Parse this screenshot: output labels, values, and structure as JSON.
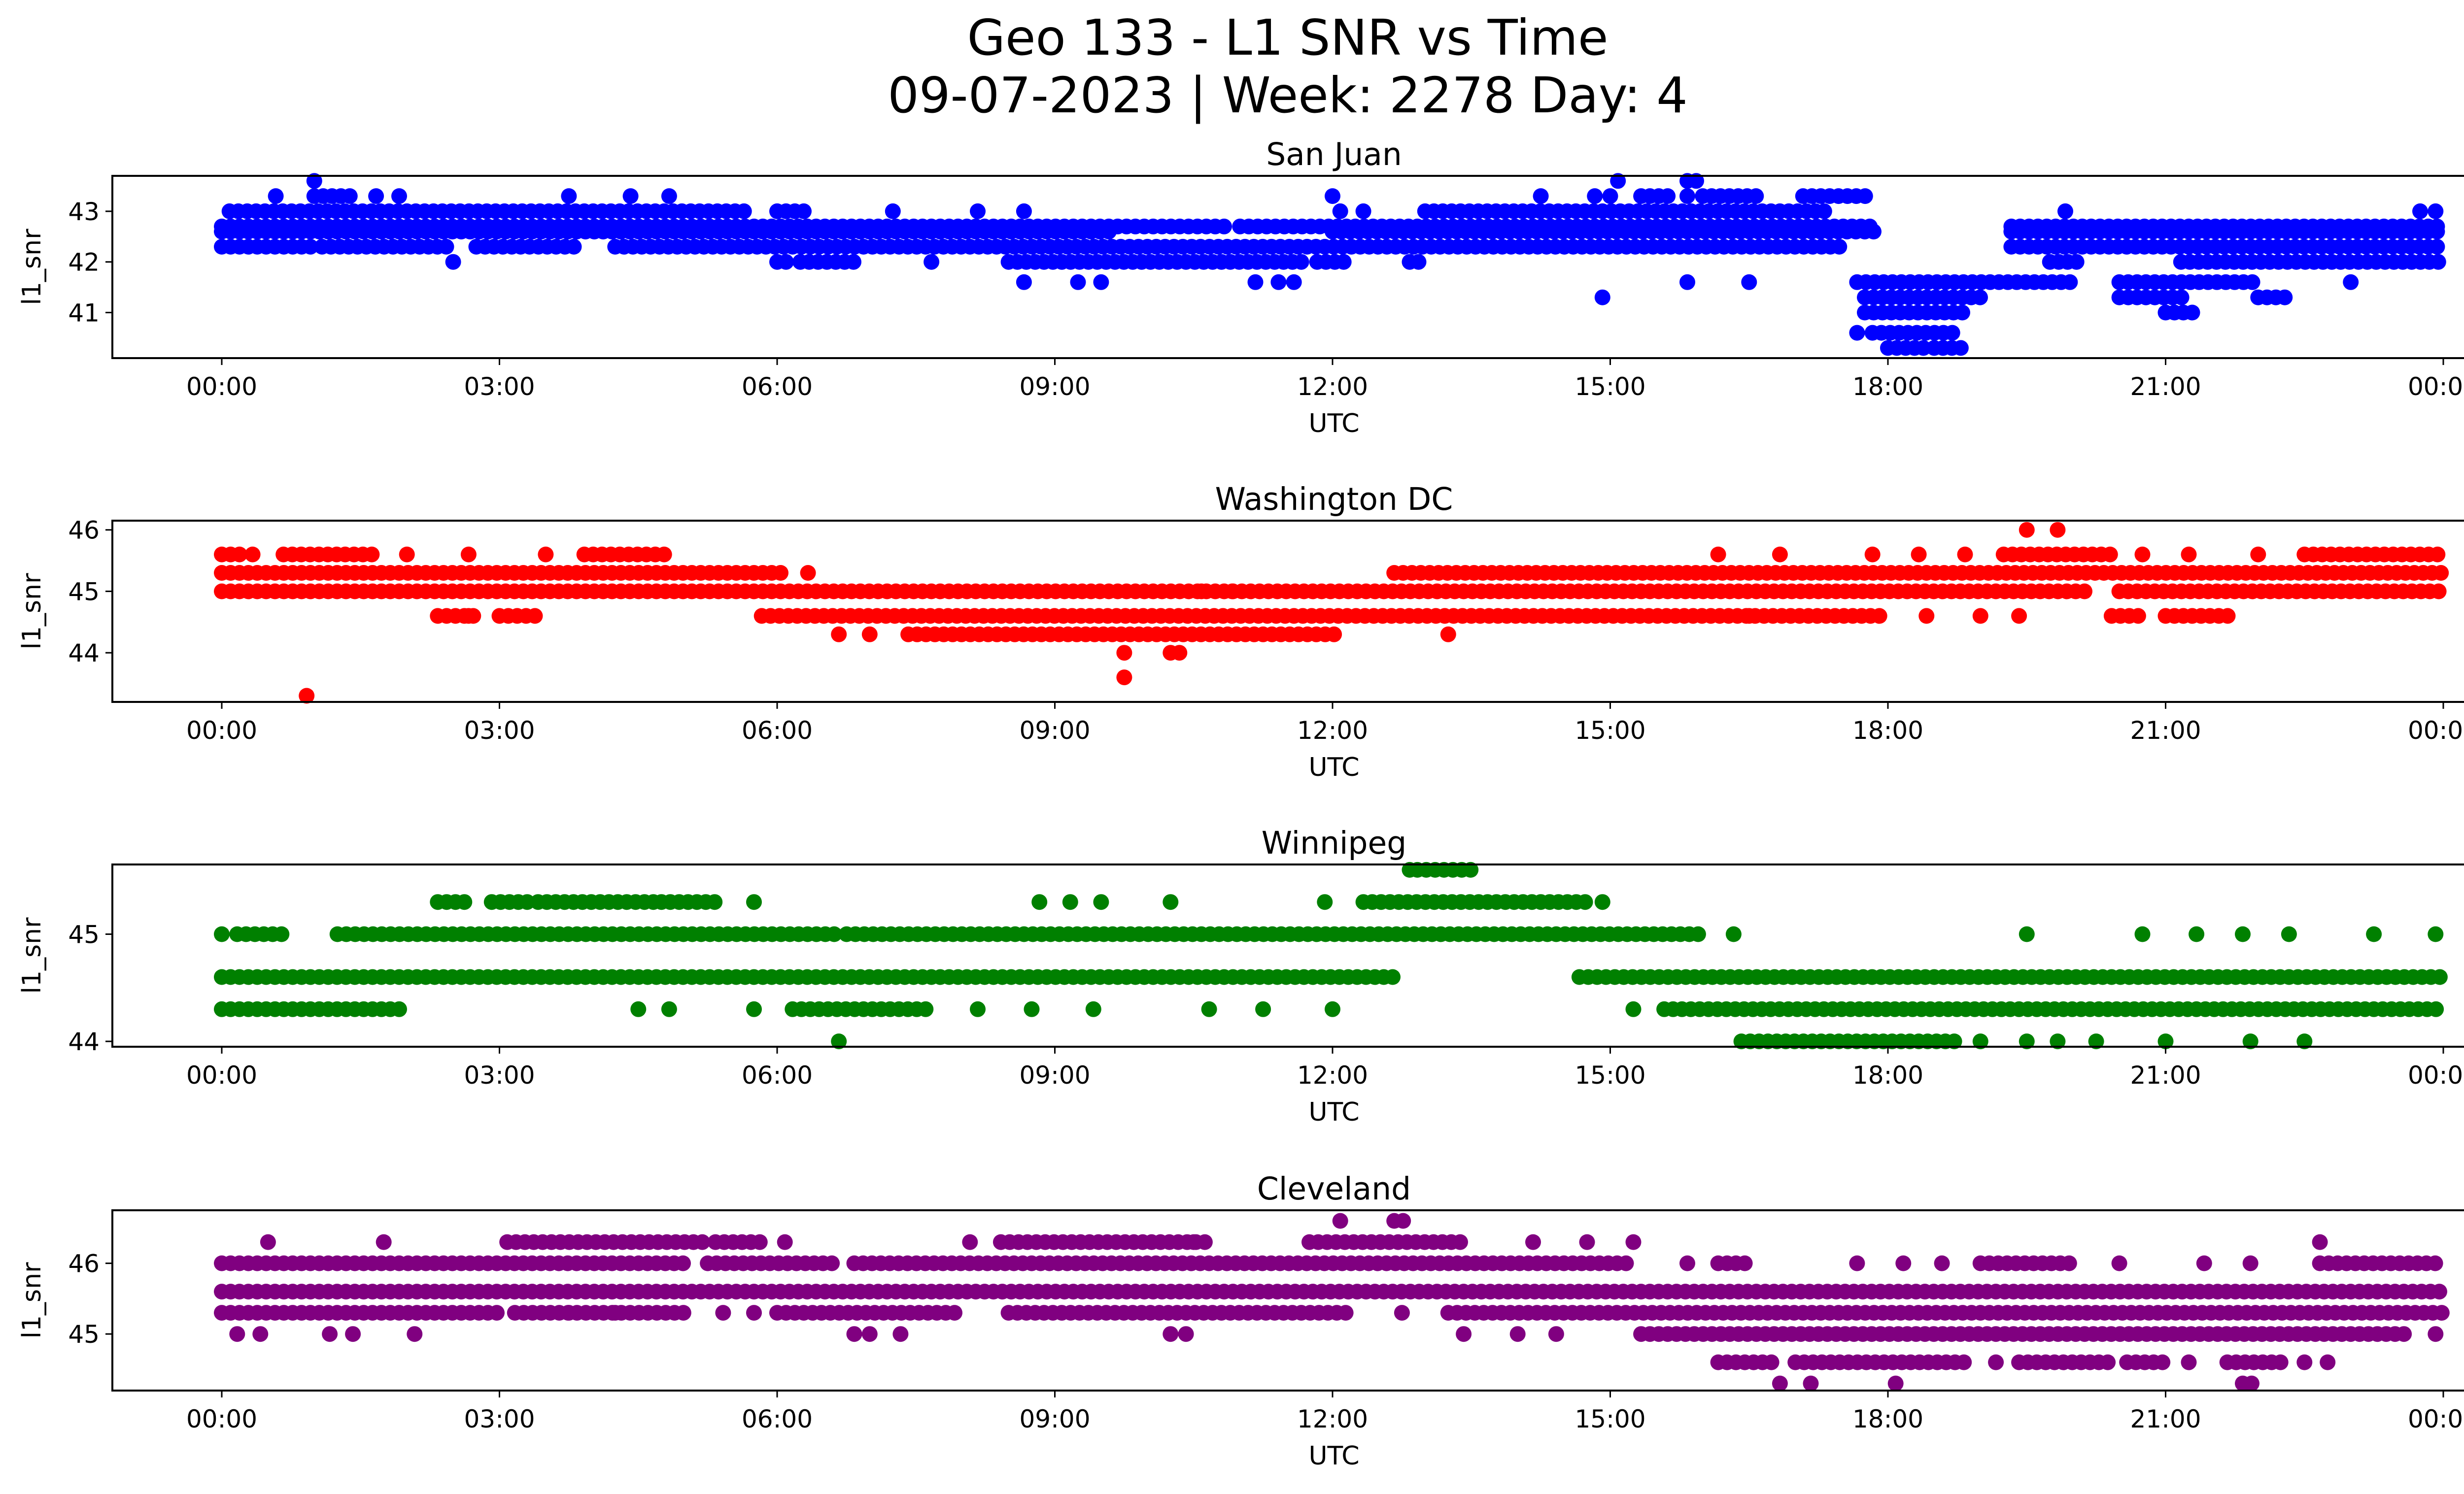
{
  "title_line1": "Geo 133 - L1 SNR vs Time",
  "title_line2": "09-07-2023 | Week: 2278 Day: 4",
  "chart_data": [
    {
      "type": "scatter",
      "title": "San Juan",
      "xlabel": "UTC",
      "ylabel": "l1_snr",
      "color": "#0000ff",
      "xlim": [
        "2023-09-07T00:00Z",
        "2023-09-08T00:00Z"
      ],
      "ylim": [
        40.1,
        43.7
      ],
      "xticks": [
        "00:00",
        "03:00",
        "06:00",
        "09:00",
        "12:00",
        "15:00",
        "18:00",
        "21:00",
        "00:00"
      ],
      "yticks": [
        41,
        42,
        43
      ],
      "grid": false,
      "levels": [
        {
          "y": 43.0,
          "segments": [
            [
              "00:05",
              "05:40"
            ],
            [
              "06:00",
              "06:20"
            ],
            [
              "13:00",
              "17:20"
            ]
          ],
          "points": [
            "07:15",
            "08:10",
            "08:40",
            "12:05",
            "12:20",
            "19:55",
            "23:45",
            "23:55"
          ]
        },
        {
          "y": 42.7,
          "segments": [
            [
              "00:00",
              "10:50"
            ],
            [
              "11:00",
              "17:50"
            ],
            [
              "19:20",
              "23:59"
            ]
          ],
          "points": []
        },
        {
          "y": 42.6,
          "segments": [
            [
              "00:00",
              "09:40"
            ],
            [
              "12:00",
              "17:55"
            ],
            [
              "19:20",
              "23:59"
            ]
          ],
          "points": []
        },
        {
          "y": 42.3,
          "segments": [
            [
              "00:00",
              "01:00"
            ],
            [
              "01:05",
              "02:30"
            ],
            [
              "02:45",
              "03:50"
            ],
            [
              "04:15",
              "17:30"
            ],
            [
              "19:20",
              "23:59"
            ]
          ],
          "points": []
        },
        {
          "y": 42.0,
          "segments": [
            [
              "06:00",
              "06:10"
            ],
            [
              "06:15",
              "06:50"
            ],
            [
              "08:30",
              "11:40"
            ],
            [
              "11:50",
              "12:10"
            ],
            [
              "12:50",
              "13:00"
            ],
            [
              "19:45",
              "20:05"
            ],
            [
              "21:10",
              "23:59"
            ]
          ],
          "points": [
            "02:30",
            "07:40"
          ]
        },
        {
          "y": 41.6,
          "segments": [
            [
              "17:40",
              "20:00"
            ],
            [
              "20:30",
              "22:00"
            ]
          ],
          "points": [
            "08:40",
            "09:15",
            "09:30",
            "11:10",
            "11:25",
            "11:35",
            "15:50",
            "16:30",
            "23:00"
          ]
        },
        {
          "y": 41.3,
          "segments": [
            [
              "17:45",
              "19:00"
            ],
            [
              "20:30",
              "21:15"
            ],
            [
              "22:00",
              "22:20"
            ]
          ],
          "points": [
            "14:55"
          ]
        },
        {
          "y": 41.0,
          "segments": [
            [
              "17:45",
              "18:50"
            ],
            [
              "21:00",
              "21:20"
            ]
          ],
          "points": []
        },
        {
          "y": 40.6,
          "segments": [
            [
              "17:50",
              "18:45"
            ]
          ],
          "points": [
            "17:40"
          ]
        },
        {
          "y": 40.3,
          "segments": [
            [
              "18:00",
              "18:25"
            ],
            [
              "18:30",
              "18:50"
            ]
          ],
          "points": []
        },
        {
          "y": 43.3,
          "segments": [
            [
              "01:00",
              "01:25"
            ],
            [
              "15:20",
              "15:40"
            ],
            [
              "16:00",
              "16:40"
            ],
            [
              "17:05",
              "17:50"
            ]
          ],
          "points": [
            "00:35",
            "01:40",
            "01:55",
            "03:45",
            "04:25",
            "04:50",
            "12:00",
            "14:15",
            "14:50",
            "15:00",
            "15:50"
          ]
        },
        {
          "y": 43.6,
          "segments": [
            [
              "15:50",
              "16:00"
            ]
          ],
          "points": [
            "01:00",
            "15:05"
          ]
        }
      ]
    },
    {
      "type": "scatter",
      "title": "Washington DC",
      "xlabel": "UTC",
      "ylabel": "l1_snr",
      "color": "#ff0000",
      "xlim": [
        "2023-09-07T00:00Z",
        "2023-09-08T00:00Z"
      ],
      "ylim": [
        43.2,
        46.15
      ],
      "xticks": [
        "00:00",
        "03:00",
        "06:00",
        "09:00",
        "12:00",
        "15:00",
        "18:00",
        "21:00",
        "00:00"
      ],
      "yticks": [
        44,
        45,
        46
      ],
      "grid": false,
      "levels": [
        {
          "y": 46.0,
          "segments": [],
          "points": [
            "19:30",
            "19:50"
          ]
        },
        {
          "y": 45.6,
          "segments": [
            [
              "00:00",
              "00:15"
            ],
            [
              "00:40",
              "01:15"
            ],
            [
              "01:20",
              "01:40"
            ],
            [
              "03:55",
              "04:50"
            ],
            [
              "19:15",
              "20:25"
            ],
            [
              "22:30",
              "23:59"
            ]
          ],
          "points": [
            "00:20",
            "02:00",
            "02:40",
            "03:30",
            "16:10",
            "16:50",
            "17:50",
            "18:20",
            "18:50",
            "20:45",
            "21:15",
            "22:00"
          ]
        },
        {
          "y": 45.3,
          "segments": [
            [
              "00:00",
              "06:05"
            ],
            [
              "12:40",
              "23:59"
            ]
          ],
          "points": [
            "06:20"
          ]
        },
        {
          "y": 45.0,
          "segments": [
            [
              "00:00",
              "20:10"
            ],
            [
              "20:30",
              "23:59"
            ]
          ],
          "points": [
            "10:35",
            "10:55"
          ]
        },
        {
          "y": 44.6,
          "segments": [
            [
              "02:20",
              "02:45"
            ],
            [
              "03:00",
              "03:25"
            ],
            [
              "05:50",
              "17:55"
            ],
            [
              "20:25",
              "20:45"
            ],
            [
              "21:00",
              "21:45"
            ]
          ],
          "points": [
            "02:40",
            "16:30",
            "18:25",
            "19:00",
            "19:25"
          ]
        },
        {
          "y": 44.3,
          "segments": [
            [
              "07:25",
              "12:05"
            ]
          ],
          "points": [
            "06:40",
            "07:00",
            "13:15"
          ]
        },
        {
          "y": 44.0,
          "segments": [
            [
              "10:15",
              "10:25"
            ]
          ],
          "points": [
            "09:45"
          ]
        },
        {
          "y": 43.6,
          "segments": [],
          "points": [
            "09:45"
          ]
        },
        {
          "y": 43.3,
          "segments": [],
          "points": [
            "00:55"
          ]
        }
      ]
    },
    {
      "type": "scatter",
      "title": "Winnipeg",
      "xlabel": "UTC",
      "ylabel": "l1_snr",
      "color": "#008000",
      "xlim": [
        "2023-09-07T00:00Z",
        "2023-09-08T00:00Z"
      ],
      "ylim": [
        43.95,
        45.65
      ],
      "xticks": [
        "00:00",
        "03:00",
        "06:00",
        "09:00",
        "12:00",
        "15:00",
        "18:00",
        "21:00",
        "00:00"
      ],
      "yticks": [
        44,
        45
      ],
      "grid": false,
      "levels": [
        {
          "y": 45.6,
          "segments": [
            [
              "12:55",
              "13:35"
            ]
          ],
          "points": [
            "12:50"
          ]
        },
        {
          "y": 45.3,
          "segments": [
            [
              "02:20",
              "02:40"
            ],
            [
              "02:55",
              "03:20"
            ],
            [
              "03:25",
              "04:40"
            ],
            [
              "04:45",
              "05:20"
            ],
            [
              "12:20",
              "14:45"
            ]
          ],
          "points": [
            "05:45",
            "08:50",
            "09:10",
            "09:30",
            "10:15",
            "11:55",
            "14:55"
          ]
        },
        {
          "y": 45.0,
          "segments": [
            [
              "00:10",
              "00:40"
            ],
            [
              "01:15",
              "06:40"
            ],
            [
              "06:45",
              "16:00"
            ]
          ],
          "points": [
            "00:00",
            "16:20",
            "19:30",
            "20:45",
            "21:20",
            "21:50",
            "22:20",
            "23:15",
            "23:55"
          ]
        },
        {
          "y": 44.6,
          "segments": [
            [
              "00:00",
              "12:40"
            ],
            [
              "14:40",
              "23:59"
            ]
          ],
          "points": []
        },
        {
          "y": 44.3,
          "segments": [
            [
              "00:00",
              "02:00"
            ],
            [
              "06:10",
              "07:40"
            ],
            [
              "15:35",
              "23:59"
            ]
          ],
          "points": [
            "04:30",
            "04:50",
            "05:45",
            "08:10",
            "08:45",
            "09:25",
            "10:40",
            "11:15",
            "12:00",
            "15:15"
          ]
        },
        {
          "y": 44.0,
          "segments": [
            [
              "16:25",
              "18:45"
            ]
          ],
          "points": [
            "06:40",
            "19:00",
            "19:30",
            "19:50",
            "20:15",
            "21:00",
            "21:55",
            "22:30"
          ]
        }
      ]
    },
    {
      "type": "scatter",
      "title": "Cleveland",
      "xlabel": "UTC",
      "ylabel": "l1_snr",
      "color": "#800080",
      "xlim": [
        "2023-09-07T00:00Z",
        "2023-09-08T00:00Z"
      ],
      "ylim": [
        44.2,
        46.75
      ],
      "xticks": [
        "00:00",
        "03:00",
        "06:00",
        "09:00",
        "12:00",
        "15:00",
        "18:00",
        "21:00",
        "00:00"
      ],
      "yticks": [
        45,
        46
      ],
      "grid": false,
      "levels": [
        {
          "y": 46.6,
          "segments": [
            [
              "12:40",
              "12:50"
            ]
          ],
          "points": [
            "12:05"
          ]
        },
        {
          "y": 46.3,
          "segments": [
            [
              "03:05",
              "05:15"
            ],
            [
              "05:20",
              "05:50"
            ],
            [
              "08:25",
              "10:40"
            ],
            [
              "11:45",
              "13:25"
            ]
          ],
          "points": [
            "00:30",
            "01:45",
            "06:05",
            "08:05",
            "10:30",
            "14:10",
            "14:45",
            "15:15",
            "22:40"
          ]
        },
        {
          "y": 46.0,
          "segments": [
            [
              "00:00",
              "05:00"
            ],
            [
              "05:15",
              "06:40"
            ],
            [
              "06:50",
              "15:15"
            ],
            [
              "16:10",
              "16:30"
            ],
            [
              "19:00",
              "20:00"
            ],
            [
              "22:40",
              "23:59"
            ]
          ],
          "points": [
            "15:50",
            "17:40",
            "18:10",
            "18:35",
            "20:30",
            "21:25",
            "21:55"
          ]
        },
        {
          "y": 45.6,
          "segments": [
            [
              "00:00",
              "23:59"
            ]
          ],
          "points": []
        },
        {
          "y": 45.3,
          "segments": [
            [
              "00:00",
              "03:00"
            ],
            [
              "03:10",
              "05:00"
            ],
            [
              "06:00",
              "08:00"
            ],
            [
              "08:30",
              "12:10"
            ],
            [
              "13:15",
              "23:59"
            ]
          ],
          "points": [
            "03:45",
            "04:15",
            "05:25",
            "05:45",
            "12:45"
          ]
        },
        {
          "y": 45.0,
          "segments": [
            [
              "15:20",
              "23:40"
            ]
          ],
          "points": [
            "00:10",
            "00:25",
            "01:10",
            "01:25",
            "02:05",
            "06:50",
            "07:00",
            "07:20",
            "10:15",
            "10:25",
            "13:25",
            "14:00",
            "14:25",
            "23:55"
          ]
        },
        {
          "y": 44.6,
          "segments": [
            [
              "16:10",
              "16:45"
            ],
            [
              "17:00",
              "18:50"
            ],
            [
              "19:25",
              "20:25"
            ],
            [
              "20:35",
              "21:00"
            ],
            [
              "21:40",
              "22:15"
            ]
          ],
          "points": [
            "19:10",
            "21:15",
            "22:30",
            "22:45"
          ]
        },
        {
          "y": 44.3,
          "segments": [
            [
              "21:50",
              "22:00"
            ]
          ],
          "points": [
            "16:50",
            "17:10",
            "18:05"
          ]
        }
      ]
    }
  ]
}
